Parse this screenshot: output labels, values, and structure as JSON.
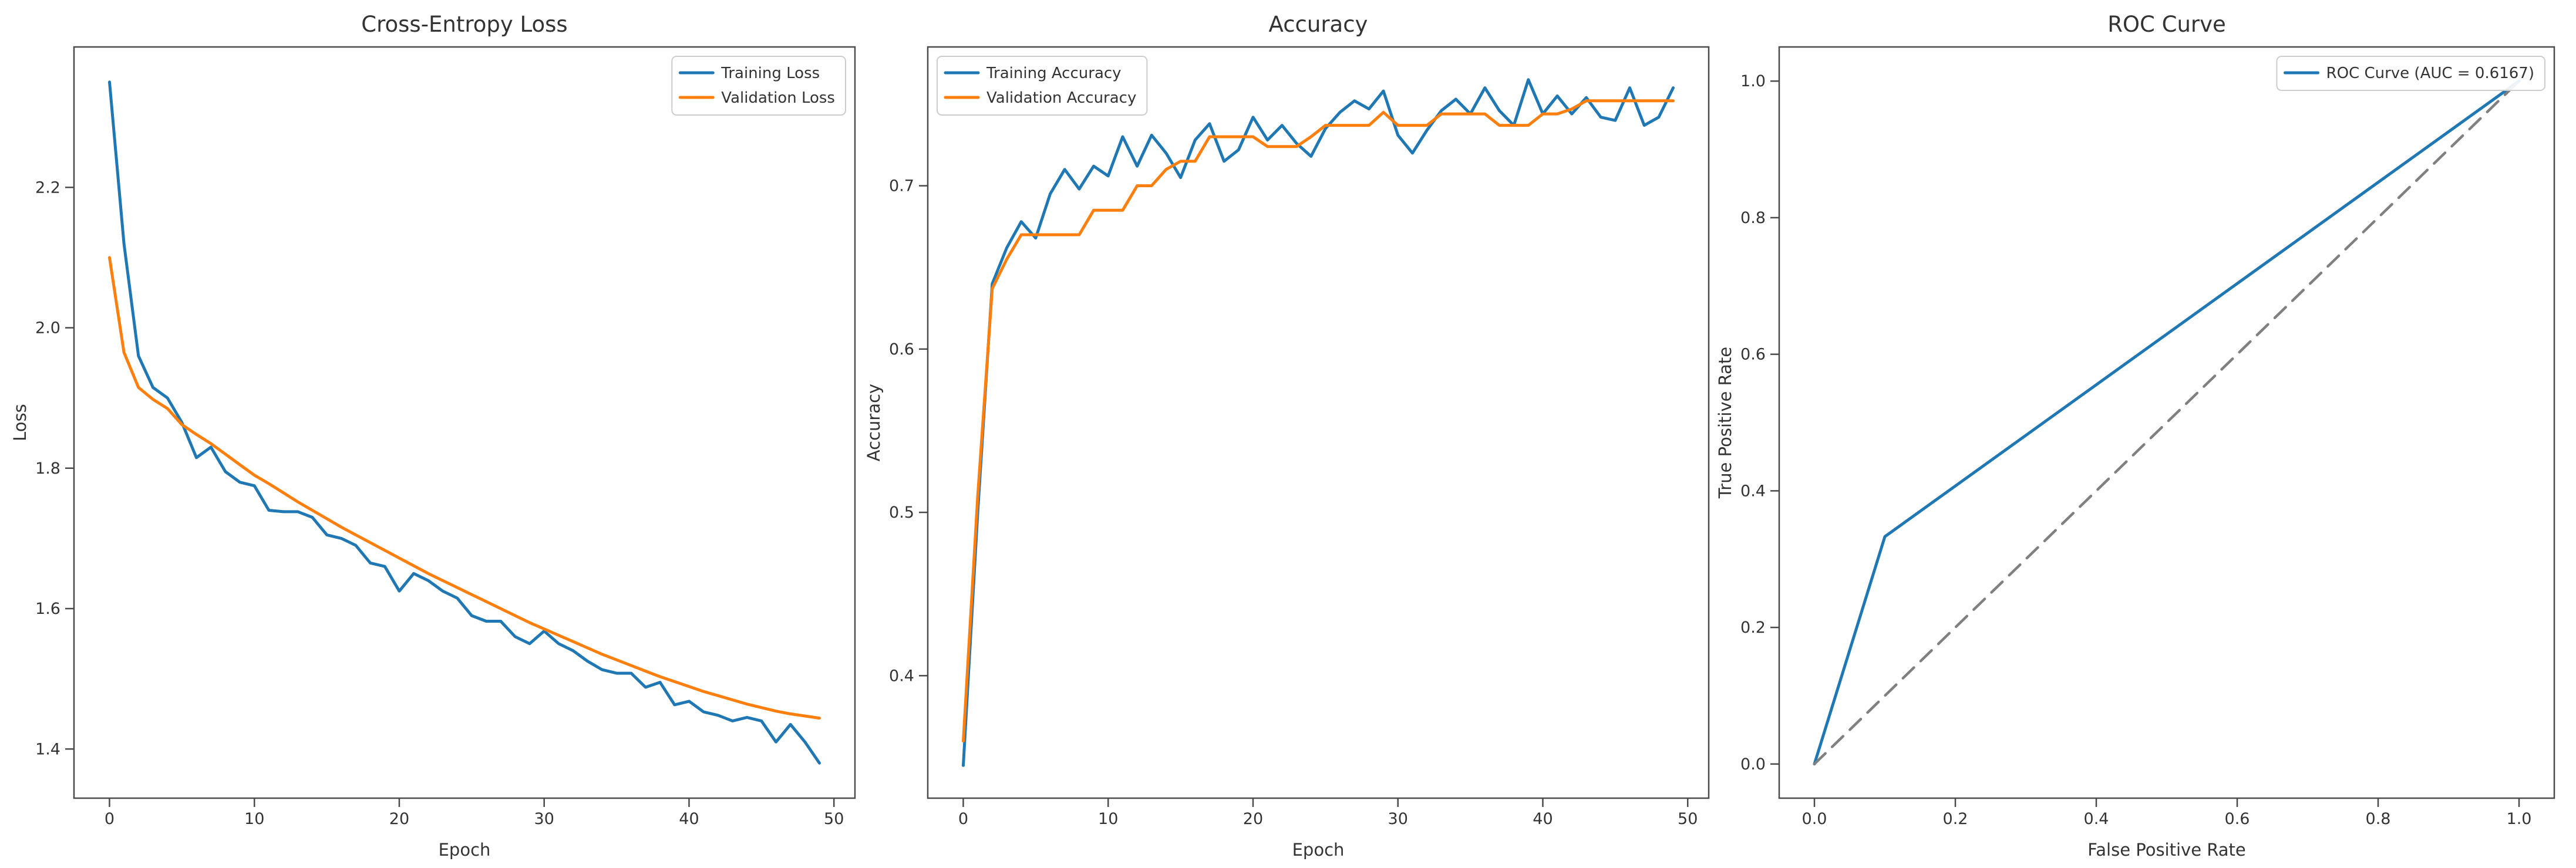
{
  "figure": {
    "background": "#ffffff",
    "text_color": "#333333",
    "spine_color": "#4a4a4a",
    "legend_border_color": "#cccccc",
    "accent_blue": "#1f77b4",
    "accent_orange": "#ff7f0e",
    "diagonal_gray": "#808080"
  },
  "chart_data": [
    {
      "type": "line",
      "title": "Cross-Entropy Loss",
      "xlabel": "Epoch",
      "ylabel": "Loss",
      "xlim": [
        -2.45,
        51.45
      ],
      "ylim": [
        1.33,
        2.4
      ],
      "xticks": [
        0,
        10,
        20,
        30,
        40,
        50
      ],
      "xtick_labels": [
        "0",
        "10",
        "20",
        "30",
        "40",
        "50"
      ],
      "yticks": [
        1.4,
        1.6,
        1.8,
        2.0,
        2.2
      ],
      "ytick_labels": [
        "1.4",
        "1.6",
        "1.8",
        "2.0",
        "2.2"
      ],
      "grid": false,
      "legend_position": "upper-right",
      "series": [
        {
          "name": "Training Loss",
          "color": "#1f77b4",
          "in_legend": true,
          "values": [
            2.35,
            2.12,
            1.96,
            1.915,
            1.9,
            1.865,
            1.815,
            1.83,
            1.795,
            1.78,
            1.775,
            1.74,
            1.738,
            1.738,
            1.73,
            1.705,
            1.7,
            1.69,
            1.665,
            1.66,
            1.625,
            1.65,
            1.64,
            1.625,
            1.615,
            1.59,
            1.582,
            1.582,
            1.56,
            1.55,
            1.568,
            1.55,
            1.54,
            1.525,
            1.513,
            1.508,
            1.508,
            1.488,
            1.495,
            1.463,
            1.468,
            1.453,
            1.448,
            1.44,
            1.445,
            1.44,
            1.41,
            1.435,
            1.41,
            1.38
          ]
        },
        {
          "name": "Validation Loss",
          "color": "#ff7f0e",
          "in_legend": true,
          "values": [
            2.1,
            1.965,
            1.915,
            1.898,
            1.885,
            1.862,
            1.848,
            1.835,
            1.82,
            1.805,
            1.79,
            1.778,
            1.765,
            1.752,
            1.74,
            1.728,
            1.716,
            1.705,
            1.694,
            1.683,
            1.672,
            1.661,
            1.65,
            1.64,
            1.63,
            1.62,
            1.61,
            1.6,
            1.59,
            1.58,
            1.571,
            1.562,
            1.553,
            1.544,
            1.535,
            1.527,
            1.519,
            1.511,
            1.503,
            1.496,
            1.489,
            1.482,
            1.476,
            1.47,
            1.464,
            1.459,
            1.454,
            1.45,
            1.447,
            1.444
          ]
        }
      ]
    },
    {
      "type": "line",
      "title": "Accuracy",
      "xlabel": "Epoch",
      "ylabel": "Accuracy",
      "xlim": [
        -2.45,
        51.45
      ],
      "ylim": [
        0.325,
        0.785
      ],
      "xticks": [
        0,
        10,
        20,
        30,
        40,
        50
      ],
      "xtick_labels": [
        "0",
        "10",
        "20",
        "30",
        "40",
        "50"
      ],
      "yticks": [
        0.4,
        0.5,
        0.6,
        0.7
      ],
      "ytick_labels": [
        "0.4",
        "0.5",
        "0.6",
        "0.7"
      ],
      "grid": false,
      "legend_position": "upper-left",
      "series": [
        {
          "name": "Training Accuracy",
          "color": "#1f77b4",
          "in_legend": true,
          "values": [
            0.345,
            0.5,
            0.64,
            0.662,
            0.678,
            0.668,
            0.695,
            0.71,
            0.698,
            0.712,
            0.706,
            0.73,
            0.712,
            0.731,
            0.72,
            0.705,
            0.728,
            0.738,
            0.715,
            0.722,
            0.742,
            0.728,
            0.737,
            0.726,
            0.718,
            0.735,
            0.745,
            0.752,
            0.747,
            0.758,
            0.731,
            0.72,
            0.734,
            0.746,
            0.753,
            0.744,
            0.76,
            0.746,
            0.737,
            0.765,
            0.744,
            0.755,
            0.744,
            0.754,
            0.742,
            0.74,
            0.76,
            0.737,
            0.742,
            0.76
          ]
        },
        {
          "name": "Validation Accuracy",
          "color": "#ff7f0e",
          "in_legend": true,
          "values": [
            0.36,
            0.51,
            0.637,
            0.655,
            0.67,
            0.67,
            0.67,
            0.67,
            0.67,
            0.685,
            0.685,
            0.685,
            0.7,
            0.7,
            0.71,
            0.715,
            0.715,
            0.73,
            0.73,
            0.73,
            0.73,
            0.724,
            0.724,
            0.724,
            0.73,
            0.737,
            0.737,
            0.737,
            0.737,
            0.745,
            0.737,
            0.737,
            0.737,
            0.744,
            0.744,
            0.744,
            0.744,
            0.737,
            0.737,
            0.737,
            0.744,
            0.744,
            0.747,
            0.752,
            0.752,
            0.752,
            0.752,
            0.752,
            0.752,
            0.752
          ]
        }
      ]
    },
    {
      "type": "line",
      "title": "ROC Curve",
      "xlabel": "False Positive Rate",
      "ylabel": "True Positive Rate",
      "xlim": [
        -0.05,
        1.05
      ],
      "ylim": [
        -0.05,
        1.05
      ],
      "xticks": [
        0.0,
        0.2,
        0.4,
        0.6,
        0.8,
        1.0
      ],
      "xtick_labels": [
        "0.0",
        "0.2",
        "0.4",
        "0.6",
        "0.8",
        "1.0"
      ],
      "yticks": [
        0.0,
        0.2,
        0.4,
        0.6,
        0.8,
        1.0
      ],
      "ytick_labels": [
        "0.0",
        "0.2",
        "0.4",
        "0.6",
        "0.8",
        "1.0"
      ],
      "grid": false,
      "legend_position": "upper-right",
      "auc": 0.6167,
      "series": [
        {
          "name": "ROC Curve (AUC = 0.6167)",
          "color": "#1f77b4",
          "in_legend": true,
          "x": [
            0.0,
            0.1,
            1.0
          ],
          "values": [
            0.0,
            0.333,
            1.0
          ]
        },
        {
          "name": "chance-diagonal",
          "color": "#808080",
          "in_legend": false,
          "dash": true,
          "x": [
            0.0,
            1.0
          ],
          "values": [
            0.0,
            1.0
          ]
        }
      ]
    }
  ]
}
